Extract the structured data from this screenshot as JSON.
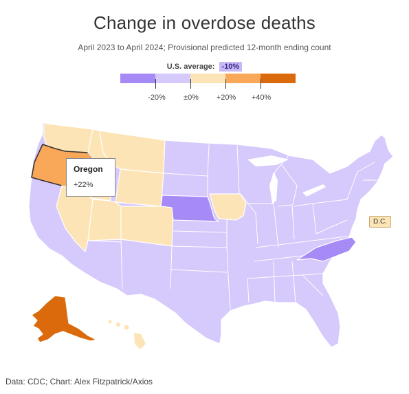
{
  "title": "Change in overdose deaths",
  "subtitle": "April 2023 to April 2024; Provisional predicted 12-month ending count",
  "average": {
    "label": "U.S. average:",
    "value": "-10%"
  },
  "legend": {
    "colors": [
      "#a68bf7",
      "#d6c9fb",
      "#fde4b6",
      "#f9a85a",
      "#db6a0c"
    ],
    "ticks": [
      "-20%",
      "±0%",
      "+20%",
      "+40%"
    ]
  },
  "tooltip": {
    "state": "Oregon",
    "value": "+22%"
  },
  "dc_label": "D.C.",
  "footer": "Data: CDC; Chart: Alex Fitzpatrick/Axios",
  "colors": {
    "strong_decline": "#a68bf7",
    "decline": "#d6c9fb",
    "increase": "#fde4b6",
    "large_increase": "#f9a85a",
    "very_large_increase": "#db6a0c"
  }
}
